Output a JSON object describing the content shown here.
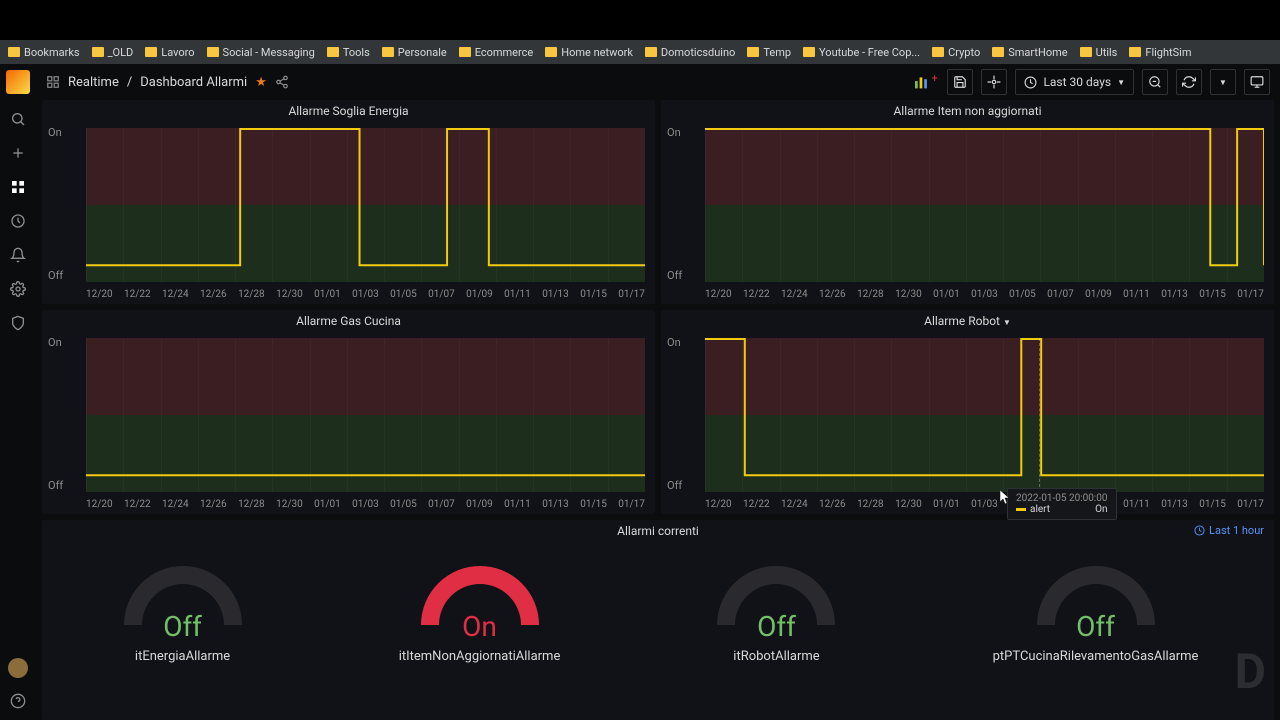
{
  "bookmarks": [
    "Bookmarks",
    "_OLD",
    "Lavoro",
    "Social - Messaging",
    "Tools",
    "Personale",
    "Ecommerce",
    "Home network",
    "Domoticsduino",
    "Temp",
    "Youtube - Free Cop...",
    "Crypto",
    "SmartHome",
    "Utils",
    "FlightSim"
  ],
  "breadcrumb": {
    "folder": "Realtime",
    "sep": "/",
    "page": "Dashboard Allarmi"
  },
  "time_range": "Last 30 days",
  "y_labels": {
    "on": "On",
    "off": "Off"
  },
  "x_ticks": [
    "12/20",
    "12/22",
    "12/24",
    "12/26",
    "12/28",
    "12/30",
    "01/01",
    "01/03",
    "01/05",
    "01/07",
    "01/09",
    "01/11",
    "01/13",
    "01/15",
    "01/17"
  ],
  "panels": {
    "topleft": {
      "title": "Allarme Soglia Energia",
      "signal": "0,138 155,138 155,1 275,1 275,138 363,138 363,1 405,1 405,138 562,138"
    },
    "topright": {
      "title": "Allarme Item non aggiornati",
      "signal": "0,1 508,1 508,138 535,138 535,1 562,1 562,138"
    },
    "botleft": {
      "title": "Allarme Gas Cucina",
      "signal": "0,138 562,138"
    },
    "botright": {
      "title": "Allarme Robot",
      "signal": "0,1 40,1 40,138 318,138 318,1 338,1 338,138 562,138"
    }
  },
  "tooltip": {
    "ts": "2022-01-05 20:00:00",
    "series": "alert",
    "value": "On"
  },
  "bottom": {
    "title": "Allarmi correnti",
    "range": "Last 1 hour",
    "gauges": [
      {
        "value": "Off",
        "state": "off",
        "label": "itEnergiaAllarme"
      },
      {
        "value": "On",
        "state": "on",
        "label": "itItemNonAggiornatiAllarme"
      },
      {
        "value": "Off",
        "state": "off",
        "label": "itRobotAllarme"
      },
      {
        "value": "Off",
        "state": "off",
        "label": "ptPTCucinaRilevamentoGasAllarme"
      }
    ]
  },
  "colors": {
    "signal": "#f2cc0c",
    "on_bg": "#3a1e22",
    "off_bg": "#1e2e1c",
    "off_text": "#73bf69",
    "on_text": "#e02f44",
    "arc_inactive": "#2a2a2e",
    "arc_active": "#e02f44"
  }
}
